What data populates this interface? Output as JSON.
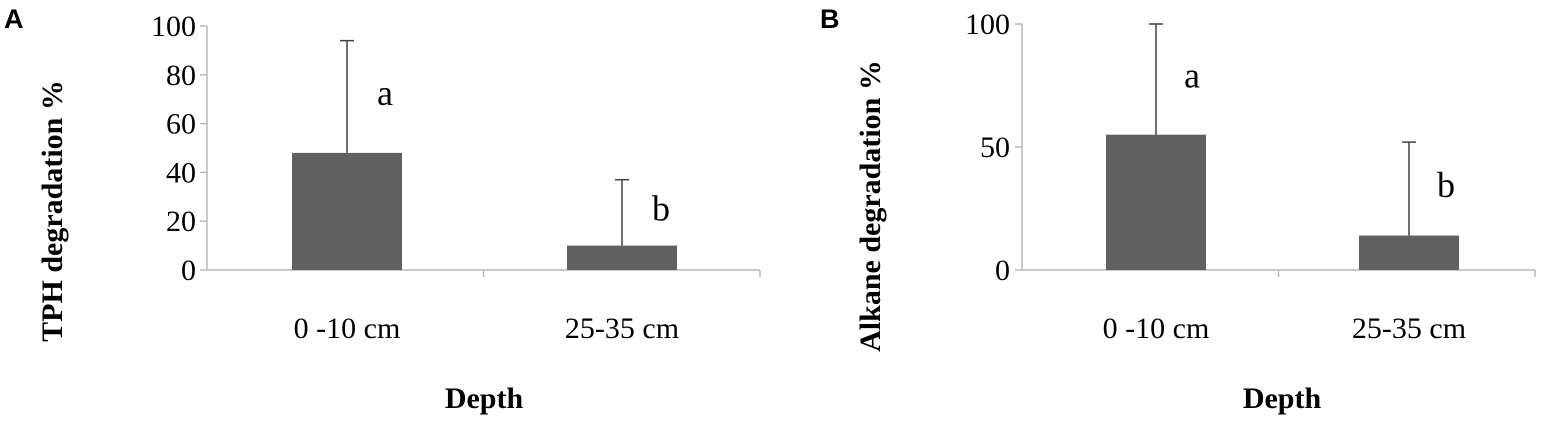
{
  "chart_data": [
    {
      "panel": "A",
      "type": "bar",
      "categories": [
        "0 -10 cm",
        "25-35 cm"
      ],
      "values": [
        48,
        10
      ],
      "errors": [
        46,
        27
      ],
      "significance": [
        "a",
        "b"
      ],
      "xlabel": "Depth",
      "ylabel": "TPH degradation %",
      "ylim": [
        0,
        100
      ],
      "yticks": [
        0,
        20,
        40,
        60,
        80,
        100
      ],
      "bar_color": "#606060"
    },
    {
      "panel": "B",
      "type": "bar",
      "categories": [
        "0 -10 cm",
        "25-35 cm"
      ],
      "values": [
        55,
        14
      ],
      "errors": [
        45,
        38
      ],
      "significance": [
        "a",
        "b"
      ],
      "xlabel": "Depth",
      "ylabel": "Alkane degradation %",
      "ylim": [
        0,
        100
      ],
      "yticks": [
        0,
        50,
        100
      ],
      "bar_color": "#606060"
    }
  ]
}
